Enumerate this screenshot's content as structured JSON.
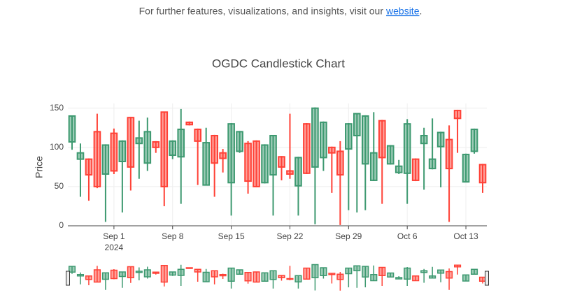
{
  "notice": {
    "text": "For further features, visualizations, and insights, visit our",
    "link": "website",
    "end": "."
  },
  "chart_data": {
    "type": "candlestick",
    "title": "OGDC Candlestick Chart",
    "ylabel": "Price",
    "x": [
      "2024-08-27",
      "2024-08-28",
      "2024-08-29",
      "2024-08-30",
      "2024-08-31",
      "2024-09-01",
      "2024-09-02",
      "2024-09-03",
      "2024-09-04",
      "2024-09-05",
      "2024-09-06",
      "2024-09-07",
      "2024-09-08",
      "2024-09-09",
      "2024-09-10",
      "2024-09-11",
      "2024-09-12",
      "2024-09-13",
      "2024-09-14",
      "2024-09-15",
      "2024-09-16",
      "2024-09-17",
      "2024-09-18",
      "2024-09-19",
      "2024-09-20",
      "2024-09-21",
      "2024-09-22",
      "2024-09-23",
      "2024-09-24",
      "2024-09-25",
      "2024-09-26",
      "2024-09-27",
      "2024-09-28",
      "2024-09-29",
      "2024-09-30",
      "2024-10-01",
      "2024-10-02",
      "2024-10-03",
      "2024-10-04",
      "2024-10-05",
      "2024-10-06",
      "2024-10-07",
      "2024-10-08",
      "2024-10-09",
      "2024-10-10",
      "2024-10-11",
      "2024-10-12",
      "2024-10-13",
      "2024-10-14",
      "2024-10-15"
    ],
    "open": [
      107,
      85,
      85,
      120,
      66,
      118,
      82,
      138,
      105,
      80,
      107,
      145,
      90,
      88,
      132,
      123,
      52,
      115,
      93,
      55,
      95,
      105,
      108,
      55,
      65,
      88,
      70,
      51,
      130,
      75,
      87,
      100,
      95,
      98,
      115,
      79,
      58,
      134,
      79,
      68,
      67,
      85,
      105,
      73,
      101,
      110,
      147,
      56,
      95,
      78
    ],
    "high": [
      140,
      105,
      86,
      143,
      104,
      124,
      109,
      139,
      134,
      138,
      108,
      145,
      109,
      149,
      133,
      124,
      125,
      116,
      98,
      131,
      121,
      108,
      109,
      104,
      115,
      89,
      143,
      88,
      131,
      151,
      133,
      101,
      108,
      131,
      143,
      141,
      145,
      135,
      103,
      84,
      136,
      86,
      125,
      137,
      120,
      128,
      148,
      92,
      124,
      79
    ],
    "low": [
      97,
      37,
      32,
      48,
      5,
      66,
      17,
      45,
      60,
      70,
      93,
      25,
      85,
      28,
      128,
      52,
      52,
      37,
      68,
      13,
      93,
      41,
      49,
      54,
      13,
      58,
      60,
      13,
      66,
      2,
      70,
      42,
      1,
      20,
      17,
      20,
      57,
      28,
      78,
      66,
      28,
      57,
      46,
      72,
      49,
      5,
      93,
      56,
      92,
      42
    ],
    "close": [
      140,
      93,
      65,
      50,
      103,
      70,
      108,
      75,
      112,
      120,
      100,
      50,
      108,
      123,
      129,
      108,
      106,
      80,
      86,
      130,
      120,
      57,
      50,
      103,
      115,
      75,
      66,
      87,
      67,
      150,
      132,
      93,
      65,
      130,
      143,
      140,
      93,
      87,
      102,
      76,
      130,
      58,
      115,
      85,
      119,
      73,
      137,
      91,
      123,
      55
    ],
    "increasing_color": "#3d9970",
    "decreasing_color": "#ff4136",
    "xlim": [
      "2024-08-26 12:00",
      "2024-10-15 12:00"
    ],
    "xticks": [
      {
        "value": "2024-09-01",
        "label": "Sep 1"
      },
      {
        "value": "2024-09-08",
        "label": "Sep 8"
      },
      {
        "value": "2024-09-15",
        "label": "Sep 15"
      },
      {
        "value": "2024-09-22",
        "label": "Sep 22"
      },
      {
        "value": "2024-09-29",
        "label": "Sep 29"
      },
      {
        "value": "2024-10-06",
        "label": "Oct 6"
      },
      {
        "value": "2024-10-13",
        "label": "Oct 13"
      }
    ],
    "xtick_year": "2024",
    "ylim": [
      0,
      156
    ],
    "yticks": [
      0,
      50,
      100,
      150
    ],
    "grid": true,
    "rangeslider": true
  }
}
